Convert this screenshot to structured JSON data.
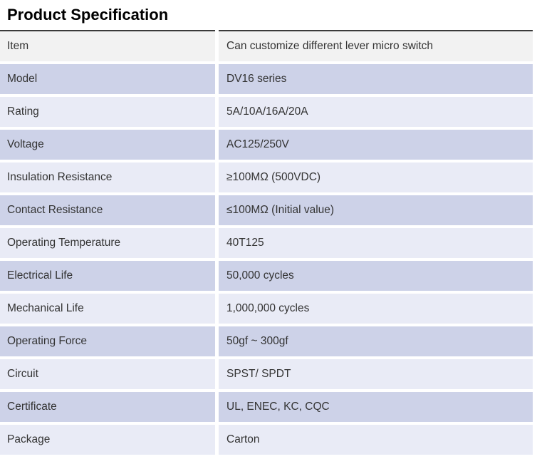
{
  "page": {
    "title": "Product Specification"
  },
  "colors": {
    "top_border": "#3a3a3a",
    "row_header_bg": "#f2f2f2",
    "row_medium_bg": "#cdd2e8",
    "row_light_bg": "#e9ebf6",
    "text": "#333333"
  },
  "table": {
    "rows": [
      {
        "label": "Item",
        "value": "Can customize different lever micro switch",
        "tone": "header"
      },
      {
        "label": "Model",
        "value": "DV16 series",
        "tone": "medium"
      },
      {
        "label": "Rating",
        "value": "5A/10A/16A/20A",
        "tone": "light"
      },
      {
        "label": "Voltage",
        "value": "AC125/250V",
        "tone": "medium"
      },
      {
        "label": "Insulation Resistance",
        "value": "≥100MΩ (500VDC)",
        "tone": "light"
      },
      {
        "label": "Contact Resistance",
        "value": "≤100MΩ (Initial value)",
        "tone": "medium"
      },
      {
        "label": "Operating Temperature",
        "value": "40T125",
        "tone": "light"
      },
      {
        "label": "Electrical Life",
        "value": "50,000 cycles",
        "tone": "medium"
      },
      {
        "label": "Mechanical Life",
        "value": "1,000,000 cycles",
        "tone": "light"
      },
      {
        "label": "Operating Force",
        "value": "50gf ~ 300gf",
        "tone": "medium"
      },
      {
        "label": "Circuit",
        "value": "SPST/ SPDT",
        "tone": "light"
      },
      {
        "label": "Certificate",
        "value": "UL, ENEC, KC, CQC",
        "tone": "medium"
      },
      {
        "label": "Package",
        "value": "Carton",
        "tone": "light"
      }
    ]
  }
}
